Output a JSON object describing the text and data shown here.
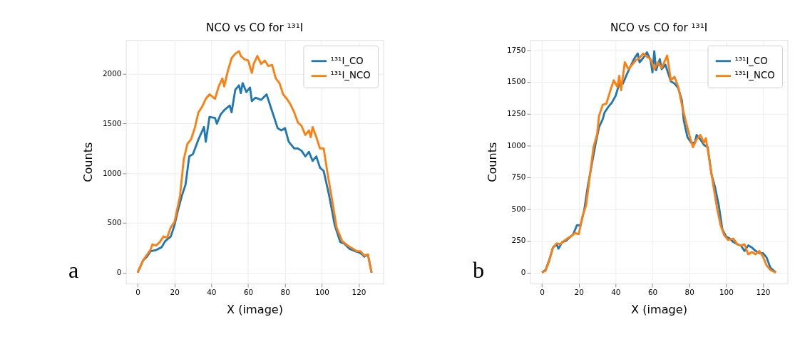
{
  "chart_data": [
    {
      "type": "line",
      "title": "NCO vs CO for ¹³¹I",
      "xlabel": "X (image)",
      "ylabel": "Counts",
      "legend": "top right",
      "grid": true,
      "annotations": [
        "a"
      ],
      "xlim": [
        -6.35,
        133.35
      ],
      "ylim": [
        -111.5,
        2341.5
      ],
      "xticks": [
        0,
        20,
        40,
        60,
        80,
        100,
        120
      ],
      "yticks": [
        0,
        500,
        1000,
        1500,
        2000
      ],
      "series": [
        {
          "name": "¹³¹I_CO",
          "color": "#1f77b4",
          "x": [
            0,
            3,
            5,
            7,
            10,
            13,
            15,
            18,
            20,
            22,
            24,
            26,
            28,
            30,
            33,
            36,
            37,
            39,
            42,
            43,
            45,
            47,
            50,
            51,
            53,
            55,
            56,
            57,
            59,
            61,
            62,
            64,
            67,
            70,
            72,
            76,
            78,
            80,
            82,
            85,
            87,
            89,
            91,
            93,
            95,
            97,
            99,
            101,
            104,
            107,
            110,
            112,
            115,
            118,
            120,
            122,
            123,
            125,
            127
          ],
          "values": [
            0,
            125,
            160,
            215,
            227,
            255,
            318,
            364,
            477,
            636,
            773,
            886,
            1170,
            1193,
            1341,
            1466,
            1318,
            1568,
            1557,
            1500,
            1591,
            1636,
            1682,
            1614,
            1841,
            1886,
            1807,
            1909,
            1818,
            1864,
            1727,
            1762,
            1739,
            1795,
            1682,
            1455,
            1432,
            1455,
            1318,
            1250,
            1250,
            1227,
            1170,
            1216,
            1125,
            1170,
            1057,
            1023,
            773,
            477,
            307,
            295,
            239,
            216,
            205,
            182,
            160,
            182,
            0
          ]
        },
        {
          "name": "¹³¹I_NCO",
          "color": "#ff7f0e",
          "x": [
            0,
            3,
            7,
            8,
            10,
            12,
            14,
            16,
            18,
            20,
            23,
            25,
            27,
            29,
            31,
            33,
            35,
            37,
            39,
            42,
            44,
            46,
            47,
            49,
            51,
            53,
            55,
            56,
            58,
            60,
            62,
            63,
            65,
            67,
            69,
            71,
            73,
            75,
            77,
            79,
            81,
            83,
            85,
            87,
            89,
            91,
            93,
            94,
            95,
            97,
            99,
            101,
            103,
            106,
            108,
            111,
            114,
            117,
            119,
            121,
            123,
            125,
            127
          ],
          "values": [
            0,
            125,
            230,
            284,
            273,
            307,
            364,
            352,
            455,
            511,
            773,
            1136,
            1296,
            1341,
            1455,
            1614,
            1670,
            1750,
            1795,
            1750,
            1875,
            1955,
            1875,
            2034,
            2159,
            2205,
            2230,
            2182,
            2148,
            2136,
            2011,
            2102,
            2182,
            2102,
            2136,
            2080,
            2091,
            1955,
            1909,
            1795,
            1750,
            1693,
            1614,
            1511,
            1477,
            1386,
            1432,
            1364,
            1466,
            1364,
            1250,
            1250,
            1011,
            682,
            455,
            318,
            273,
            239,
            216,
            216,
            170,
            182,
            0
          ]
        }
      ]
    },
    {
      "type": "line",
      "title": "NCO vs CO for ¹³¹I",
      "xlabel": "X (image)",
      "ylabel": "Counts",
      "legend": "top right",
      "grid": true,
      "annotations": [
        "b"
      ],
      "xlim": [
        -6.35,
        133.35
      ],
      "ylim": [
        -87,
        1829
      ],
      "xticks": [
        0,
        20,
        40,
        60,
        80,
        100,
        120
      ],
      "yticks": [
        0,
        250,
        500,
        750,
        1000,
        1250,
        1500,
        1750
      ],
      "series": [
        {
          "name": "¹³¹I_CO",
          "color": "#1f77b4",
          "x": [
            0,
            2,
            4,
            6,
            8,
            9,
            11,
            13,
            15,
            17,
            19,
            21,
            23,
            25,
            27,
            29,
            31,
            33,
            34,
            36,
            38,
            40,
            42,
            44,
            46,
            48,
            50,
            52,
            53,
            55,
            57,
            59,
            60,
            61,
            62,
            64,
            65,
            67,
            70,
            72,
            74,
            76,
            77,
            79,
            81,
            83,
            84,
            86,
            88,
            90,
            92,
            94,
            96,
            98,
            100,
            102,
            104,
            106,
            108,
            110,
            112,
            114,
            116,
            118,
            120,
            122,
            124,
            127
          ],
          "values": [
            0,
            21,
            100,
            197,
            223,
            188,
            240,
            249,
            276,
            302,
            372,
            372,
            495,
            688,
            846,
            1004,
            1145,
            1206,
            1259,
            1303,
            1338,
            1390,
            1487,
            1487,
            1557,
            1619,
            1680,
            1724,
            1654,
            1689,
            1733,
            1671,
            1575,
            1742,
            1592,
            1680,
            1601,
            1636,
            1504,
            1487,
            1452,
            1355,
            1197,
            1066,
            1022,
            1022,
            1083,
            1048,
            1004,
            987,
            776,
            671,
            530,
            337,
            284,
            267,
            240,
            223,
            214,
            170,
            214,
            197,
            170,
            153,
            153,
            118,
            39,
            0
          ]
        },
        {
          "name": "¹³¹I_NCO",
          "color": "#ff7f0e",
          "x": [
            0,
            2,
            4,
            6,
            8,
            10,
            12,
            14,
            16,
            18,
            20,
            22,
            24,
            26,
            28,
            30,
            31,
            33,
            35,
            37,
            39,
            41,
            42,
            43,
            45,
            47,
            49,
            51,
            53,
            55,
            57,
            59,
            61,
            63,
            65,
            68,
            70,
            72,
            74,
            76,
            78,
            80,
            82,
            84,
            86,
            88,
            89,
            91,
            93,
            95,
            97,
            99,
            101,
            104,
            106,
            108,
            110,
            112,
            114,
            116,
            118,
            120,
            122,
            124,
            127
          ],
          "values": [
            0,
            14,
            95,
            197,
            230,
            223,
            250,
            270,
            288,
            311,
            302,
            442,
            530,
            758,
            987,
            1092,
            1232,
            1320,
            1329,
            1425,
            1513,
            1461,
            1548,
            1434,
            1654,
            1601,
            1636,
            1671,
            1689,
            1724,
            1698,
            1680,
            1601,
            1654,
            1610,
            1707,
            1513,
            1540,
            1461,
            1320,
            1197,
            1083,
            987,
            1048,
            1083,
            1022,
            1057,
            881,
            688,
            513,
            372,
            293,
            258,
            267,
            223,
            214,
            223,
            144,
            162,
            144,
            170,
            126,
            56,
            21,
            0
          ]
        }
      ]
    }
  ]
}
